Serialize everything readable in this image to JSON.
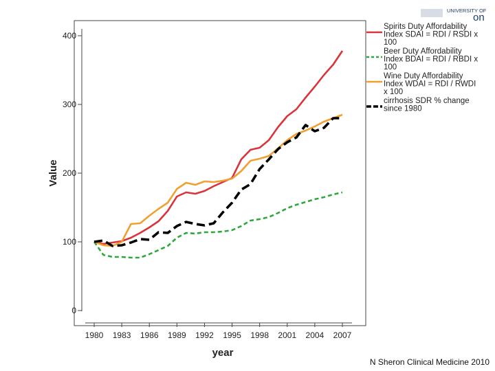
{
  "logo": {
    "top_line": "UNIVERSITY OF",
    "fragment": "on"
  },
  "credit": "N Sheron Clinical Medicine 2010",
  "chart_data": {
    "type": "line",
    "title": "",
    "xlabel": "year",
    "ylabel": "Value",
    "xlim": [
      1979,
      2008.5
    ],
    "ylim": [
      0,
      410
    ],
    "xticks": [
      1980,
      1983,
      1986,
      1989,
      1992,
      1995,
      1998,
      2001,
      2004,
      2007
    ],
    "yticks": [
      0,
      100,
      200,
      300,
      400
    ],
    "legend_position": "top-right",
    "x": [
      1980,
      1981,
      1982,
      1983,
      1984,
      1985,
      1986,
      1987,
      1988,
      1989,
      1990,
      1991,
      1992,
      1993,
      1994,
      1995,
      1996,
      1997,
      1998,
      1999,
      2000,
      2001,
      2002,
      2003,
      2004,
      2005,
      2006,
      2007
    ],
    "series": [
      {
        "name": "Spirits Duty Affordability Index SDAI = RDI / RSDI x 100",
        "legend_lines": [
          "Spirits Duty Affordability",
          "Index SDAI = RDI / RSDI x",
          "100"
        ],
        "color": "#d8343a",
        "style": "solid",
        "values": [
          100,
          97,
          99,
          101,
          106,
          113,
          121,
          130,
          145,
          166,
          172,
          170,
          174,
          181,
          187,
          193,
          220,
          234,
          237,
          248,
          267,
          283,
          293,
          310,
          326,
          343,
          358,
          378
        ]
      },
      {
        "name": "Beer Duty Affordability Index BDAI = RDI / RBDI x 100",
        "legend_lines": [
          "Beer Duty Affordability",
          "Index BDAI = RDI / RBDI x",
          "100"
        ],
        "color": "#2ea83c",
        "style": "dashed",
        "values": [
          100,
          81,
          78,
          78,
          77,
          77,
          82,
          88,
          94,
          106,
          113,
          112,
          114,
          114,
          115,
          117,
          123,
          131,
          133,
          136,
          142,
          149,
          154,
          158,
          162,
          165,
          169,
          172
        ]
      },
      {
        "name": "Wine Duty Affordability Index WDAI = RDI / RWDI x 100",
        "legend_lines": [
          "Wine Duty Affordability",
          "Index WDAI = RDI / RWDI",
          "x 100"
        ],
        "color": "#f0a030",
        "style": "solid",
        "values": [
          100,
          95,
          94,
          100,
          126,
          127,
          138,
          148,
          157,
          177,
          186,
          183,
          188,
          187,
          189,
          192,
          203,
          218,
          221,
          225,
          236,
          248,
          257,
          262,
          268,
          275,
          280,
          285
        ]
      },
      {
        "name": "cirrhosis SDR % change since 1980",
        "legend_lines": [
          "cirrhosis SDR % change",
          "since 1980"
        ],
        "color": "#000000",
        "style": "bold-dashed",
        "values": [
          100,
          102,
          94,
          95,
          99,
          104,
          103,
          114,
          113,
          123,
          129,
          126,
          124,
          127,
          143,
          157,
          176,
          184,
          206,
          220,
          235,
          245,
          252,
          270,
          261,
          266,
          280,
          280
        ]
      }
    ]
  }
}
